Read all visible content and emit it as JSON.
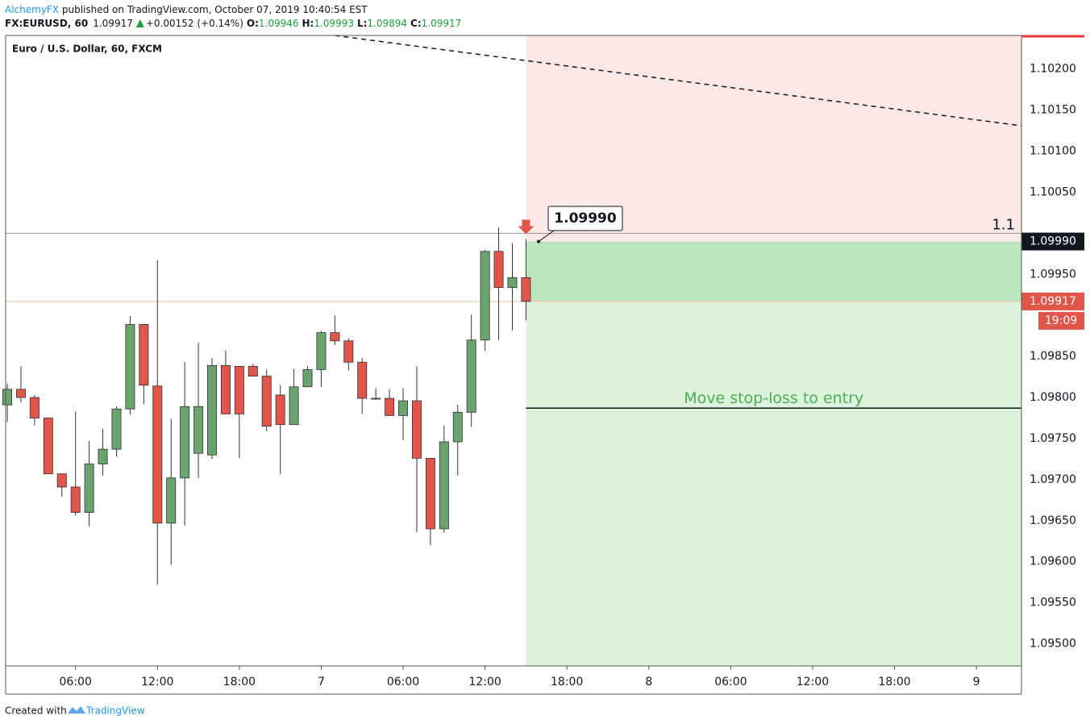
{
  "header": {
    "author": "AlchemyFX",
    "published": "published on TradingView.com, October 07, 2019 10:40:54 EST"
  },
  "quote": {
    "symbol": "FX:EURUSD, 60",
    "last": "1.09917",
    "change": "+0.00152 (+0.14%)",
    "fields": [
      {
        "label": "O:",
        "value": "1.09946"
      },
      {
        "label": "H:",
        "value": "1.09993"
      },
      {
        "label": "L:",
        "value": "1.09894"
      },
      {
        "label": "C:",
        "value": "1.09917"
      }
    ]
  },
  "footer": {
    "created": "Created with",
    "brand": "TradingView"
  },
  "chart_data": {
    "type": "candlestick",
    "title": "Euro / U.S. Dollar, 60, FXCM",
    "x": [
      0,
      1,
      2,
      3,
      4,
      5,
      6,
      7,
      8,
      9,
      10,
      11,
      12,
      13,
      14,
      15,
      16,
      17,
      18,
      19,
      20,
      21,
      22,
      23,
      24,
      25,
      26,
      27,
      28,
      29,
      30,
      31,
      32,
      33,
      34,
      35,
      36,
      37,
      38
    ],
    "open": [
      1.09791,
      1.0981,
      1.098,
      1.09775,
      1.09707,
      1.09691,
      1.0966,
      1.09719,
      1.09737,
      1.09786,
      1.09889,
      1.09814,
      1.09647,
      1.09702,
      1.09732,
      1.0973,
      1.09839,
      1.09838,
      1.09838,
      1.09826,
      1.09803,
      1.09767,
      1.09813,
      1.09834,
      1.09879,
      1.09869,
      1.09843,
      1.09799,
      1.09799,
      1.09778,
      1.09796,
      1.09726,
      1.0964,
      1.09746,
      1.09782,
      1.0987,
      1.09978,
      1.09934,
      1.09946
    ],
    "high": [
      1.09817,
      1.09838,
      1.09803,
      1.09775,
      1.09707,
      1.09783,
      1.09747,
      1.09762,
      1.09789,
      1.09899,
      1.09889,
      1.09967,
      1.09774,
      1.09843,
      1.09867,
      1.09848,
      1.09857,
      1.09838,
      1.09841,
      1.09834,
      1.09815,
      1.09835,
      1.09838,
      1.09881,
      1.099,
      1.09872,
      1.09848,
      1.09811,
      1.0981,
      1.09811,
      1.09838,
      1.09726,
      1.09766,
      1.09791,
      1.09901,
      1.0998,
      1.10007,
      1.09988,
      1.09993
    ],
    "low": [
      1.0977,
      1.09794,
      1.09766,
      1.09707,
      1.09679,
      1.09656,
      1.09643,
      1.09705,
      1.09728,
      1.09779,
      1.09792,
      1.09572,
      1.09596,
      1.09644,
      1.09702,
      1.09725,
      1.0978,
      1.09726,
      1.09826,
      1.09759,
      1.09707,
      1.09767,
      1.09813,
      1.09813,
      1.09864,
      1.09833,
      1.0978,
      1.09797,
      1.09778,
      1.09748,
      1.09636,
      1.0962,
      1.09635,
      1.09705,
      1.09764,
      1.09857,
      1.0987,
      1.09882,
      1.09894
    ],
    "close": [
      1.0981,
      1.098,
      1.09775,
      1.09707,
      1.09691,
      1.0966,
      1.09719,
      1.09737,
      1.09786,
      1.09889,
      1.09815,
      1.09647,
      1.09702,
      1.09789,
      1.09789,
      1.09839,
      1.0978,
      1.0978,
      1.09826,
      1.09765,
      1.09767,
      1.09813,
      1.09834,
      1.09879,
      1.09869,
      1.09843,
      1.09799,
      1.09799,
      1.09778,
      1.09796,
      1.09726,
      1.0964,
      1.09746,
      1.09782,
      1.0987,
      1.09978,
      1.09934,
      1.09946,
      1.09917
    ],
    "up_color": "#6ba36f",
    "down_color": "#e0564b",
    "xlim": [
      -0.12,
      74.3
    ],
    "ylim": [
      1.09473,
      1.10241
    ],
    "xticks": [
      {
        "value": 5,
        "label": "06:00"
      },
      {
        "value": 11,
        "label": "12:00"
      },
      {
        "value": 17,
        "label": "18:00"
      },
      {
        "value": 23,
        "label": "7"
      },
      {
        "value": 29,
        "label": "06:00"
      },
      {
        "value": 35,
        "label": "12:00"
      },
      {
        "value": 41,
        "label": "18:00"
      },
      {
        "value": 47,
        "label": "8"
      },
      {
        "value": 53,
        "label": "06:00"
      },
      {
        "value": 59,
        "label": "12:00"
      },
      {
        "value": 65,
        "label": "18:00"
      },
      {
        "value": 71,
        "label": "9"
      }
    ],
    "yticks": [
      {
        "value": 1.095,
        "label": "1.09500"
      },
      {
        "value": 1.0955,
        "label": "1.09550"
      },
      {
        "value": 1.096,
        "label": "1.09600"
      },
      {
        "value": 1.0965,
        "label": "1.09650"
      },
      {
        "value": 1.097,
        "label": "1.09700"
      },
      {
        "value": 1.0975,
        "label": "1.09750"
      },
      {
        "value": 1.098,
        "label": "1.09800"
      },
      {
        "value": 1.0985,
        "label": "1.09850"
      },
      {
        "value": 1.0995,
        "label": "1.09950"
      },
      {
        "value": 1.1005,
        "label": "1.10050"
      },
      {
        "value": 1.101,
        "label": "1.10100"
      },
      {
        "value": 1.1015,
        "label": "1.10150"
      },
      {
        "value": 1.102,
        "label": "1.10200"
      }
    ],
    "position": {
      "start_x": 38,
      "target": {
        "value": 1.0999,
        "label": "1.09990"
      },
      "entry": 1.09917
    },
    "level": 1.1,
    "stop_line": {
      "value": 1.09787,
      "label": "Move stop-loss to entry"
    },
    "trendline": {
      "x": [
        24,
        74.3
      ],
      "y": [
        1.10241,
        1.10131
      ]
    },
    "last_price": 1.09917,
    "countdown": "19:09"
  }
}
